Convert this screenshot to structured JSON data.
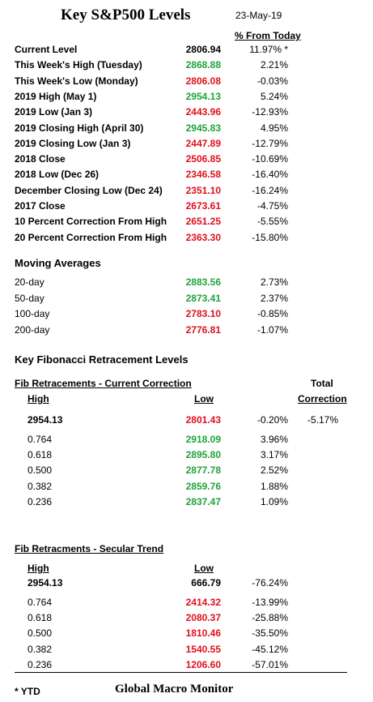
{
  "header": {
    "title": "Key S&P500 Levels",
    "date": "23-May-19",
    "pct_header": "% From Today"
  },
  "key_levels": [
    {
      "label": "Current Level",
      "value": "2806.94",
      "pct": "11.97% *",
      "color": "black"
    },
    {
      "label": "This Week's High (Tuesday)",
      "value": "2868.88",
      "pct": "2.21%",
      "color": "green"
    },
    {
      "label": "This Week's Low (Monday)",
      "value": "2806.08",
      "pct": "-0.03%",
      "color": "red"
    },
    {
      "label": "2019 High  (May 1)",
      "value": "2954.13",
      "pct": "5.24%",
      "color": "green"
    },
    {
      "label": "2019 Low  (Jan 3)",
      "value": "2443.96",
      "pct": "-12.93%",
      "color": "red"
    },
    {
      "label": "2019 Closing High (April 30)",
      "value": "2945.83",
      "pct": "4.95%",
      "color": "green"
    },
    {
      "label": "2019 Closing Low (Jan 3)",
      "value": "2447.89",
      "pct": "-12.79%",
      "color": "red"
    },
    {
      "label": "2018 Close",
      "value": "2506.85",
      "pct": "-10.69%",
      "color": "red"
    },
    {
      "label": "2018 Low (Dec 26)",
      "value": "2346.58",
      "pct": "-16.40%",
      "color": "red"
    },
    {
      "label": "December Closing Low (Dec 24)",
      "value": "2351.10",
      "pct": "-16.24%",
      "color": "red"
    },
    {
      "label": "2017 Close",
      "value": "2673.61",
      "pct": "-4.75%",
      "color": "red"
    },
    {
      "label": "10 Percent Correction From High",
      "value": "2651.25",
      "pct": "-5.55%",
      "color": "red"
    },
    {
      "label": "20 Percent Correction From High",
      "value": "2363.30",
      "pct": "-15.80%",
      "color": "red"
    }
  ],
  "moving_averages": {
    "heading": "Moving Averages",
    "rows": [
      {
        "label": "20-day",
        "value": "2883.56",
        "pct": "2.73%",
        "color": "green"
      },
      {
        "label": "50-day",
        "value": "2873.41",
        "pct": "2.37%",
        "color": "green"
      },
      {
        "label": "100-day",
        "value": "2783.10",
        "pct": "-0.85%",
        "color": "red"
      },
      {
        "label": "200-day",
        "value": "2776.81",
        "pct": "-1.07%",
        "color": "red"
      }
    ]
  },
  "fibonacci": {
    "heading": "Key Fibonacci Retracement Levels",
    "current": {
      "heading": "Fib Retracements - Current Correction",
      "high_header": "High",
      "low_header": "Low",
      "total_header_1": "Total",
      "total_header_2": "Correction",
      "high": "2954.13",
      "low": "2801.43",
      "low_pct": "-0.20%",
      "total": "-5.17%",
      "rows": [
        {
          "ratio": "0.764",
          "value": "2918.09",
          "pct": "3.96%",
          "color": "green"
        },
        {
          "ratio": "0.618",
          "value": "2895.80",
          "pct": "3.17%",
          "color": "green"
        },
        {
          "ratio": "0.500",
          "value": "2877.78",
          "pct": "2.52%",
          "color": "green"
        },
        {
          "ratio": "0.382",
          "value": "2859.76",
          "pct": "1.88%",
          "color": "green"
        },
        {
          "ratio": "0.236",
          "value": "2837.47",
          "pct": "1.09%",
          "color": "green"
        }
      ]
    },
    "secular": {
      "heading": "Fib Retracments - Secular Trend",
      "high_header": "High",
      "low_header": "Low",
      "high": "2954.13",
      "low": "666.79",
      "low_pct": "-76.24%",
      "rows": [
        {
          "ratio": "0.764",
          "value": "2414.32",
          "pct": "-13.99%",
          "color": "red"
        },
        {
          "ratio": "0.618",
          "value": "2080.37",
          "pct": "-25.88%",
          "color": "red"
        },
        {
          "ratio": "0.500",
          "value": "1810.46",
          "pct": "-35.50%",
          "color": "red"
        },
        {
          "ratio": "0.382",
          "value": "1540.55",
          "pct": "-45.12%",
          "color": "red"
        },
        {
          "ratio": "0.236",
          "value": "1206.60",
          "pct": "-57.01%",
          "color": "red"
        }
      ]
    }
  },
  "footer": {
    "note": "* YTD",
    "brand": "Global Macro Monitor"
  },
  "colors": {
    "green": "#1fa33a",
    "red": "#e0101c"
  }
}
